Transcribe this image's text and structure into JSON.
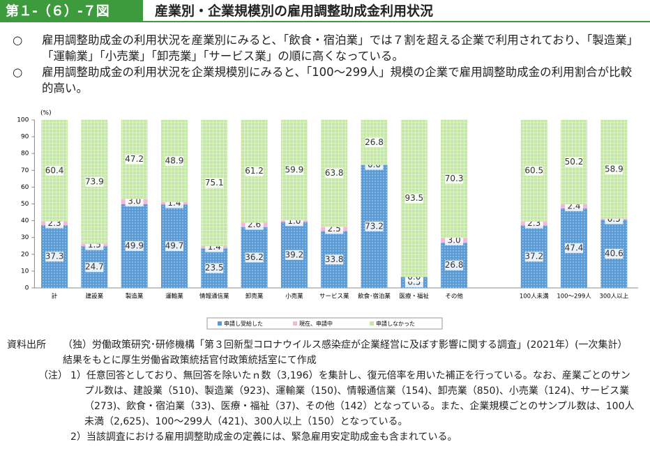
{
  "header": {
    "label": "第１-（６）-７図",
    "title": "産業別・企業規模別の雇用調整助成金利用状況"
  },
  "bullets": [
    {
      "mark": "○",
      "text": "雇用調整助成金の利用状況を産業別にみると、「飲食・宿泊業」では７割を超える企業で利用されており、「製造業」「運輸業」「小売業」「卸売業」「サービス業」の順に高くなっている。"
    },
    {
      "mark": "○",
      "text": "雇用調整助成金の利用状況を企業規模別にみると、「100～299人」規模の企業で雇用調整助成金の利用割合が比較的高い。"
    }
  ],
  "chart_data": {
    "type": "stacked_bar",
    "y_unit": "(%)",
    "categories": [
      "計",
      "建設業",
      "製造業",
      "運輸業",
      "情報通信業",
      "卸売業",
      "小売業",
      "サービス業",
      "飲食･宿泊業",
      "医療・福祉",
      "その他",
      null,
      "100人未満",
      "100～299人",
      "300人以上"
    ],
    "series": [
      {
        "name": "申請し受給した",
        "color": "#5b9bd5",
        "values": [
          37.3,
          24.7,
          49.9,
          49.7,
          23.5,
          36.2,
          39.2,
          33.8,
          73.2,
          6.5,
          26.8,
          null,
          37.2,
          47.4,
          40.6
        ],
        "value_labels": [
          "37.3",
          "24.7",
          "49.9",
          "49.7",
          "23.5",
          "36.2",
          "39.2",
          "33.8",
          "73.2",
          "6.5",
          "26.8",
          null,
          "37.2",
          "47.4",
          "40.6"
        ]
      },
      {
        "name": "現在、申請中",
        "color": "#f2b8d8",
        "values": [
          2.3,
          1.5,
          3.0,
          1.4,
          1.4,
          2.6,
          1.0,
          2.5,
          0.0,
          0.0,
          3.0,
          null,
          2.3,
          2.4,
          0.5
        ],
        "value_labels": [
          "2.3",
          "1.5",
          "3.0",
          "1.4",
          "1.4",
          "2.6",
          "1.0",
          "2.5",
          "0.0",
          "0.0",
          "3.0",
          null,
          "2.3",
          "2.4",
          "0.5"
        ]
      },
      {
        "name": "申請しなかった",
        "color": "#c5e8a6",
        "values": [
          60.4,
          73.9,
          47.2,
          48.9,
          75.1,
          61.2,
          59.9,
          63.8,
          26.8,
          93.5,
          70.3,
          null,
          60.5,
          50.2,
          58.9
        ],
        "value_labels": [
          "60.4",
          "73.9",
          "47.2",
          "48.9",
          "75.1",
          "61.2",
          "59.9",
          "63.8",
          "26.8",
          "93.5",
          "70.3",
          null,
          "60.5",
          "50.2",
          "58.9"
        ]
      }
    ],
    "ylim": [
      0,
      100
    ],
    "yticks": [
      0,
      10,
      20,
      30,
      40,
      50,
      60,
      70,
      80,
      90,
      100
    ],
    "grid": false
  },
  "source": {
    "label": "資料出所",
    "text": "（独）労働政策研究･研修機構「第３回新型コロナウイルス感染症が企業経営に及ぼす影響に関する調査」(2021年）(一次集計）結果をもとに厚生労働省政策統括官付政策統括室にて作成"
  },
  "notes": {
    "label": "（注）",
    "items": [
      "1）任意回答としており、無回答を除いたｎ数（3,196）を集計し、復元倍率を用いた補正を行っている。なお、産業ごとのサンプル数は、建設業（510)、製造業（923)、運輸業（150)、情報通信業（154)、卸売業（850)、小売業（124)、サービス業（273)、飲食・宿泊業（33)、医療・福祉（37)、その他（142）となっている。また、企業規模ごとのサンプル数は、100人未満（2,625)、100～299人（421)、300人以上（150）となっている。",
      "2）当該調査における雇用調整助成金の定義には、緊急雇用安定助成金も含まれている。"
    ]
  }
}
